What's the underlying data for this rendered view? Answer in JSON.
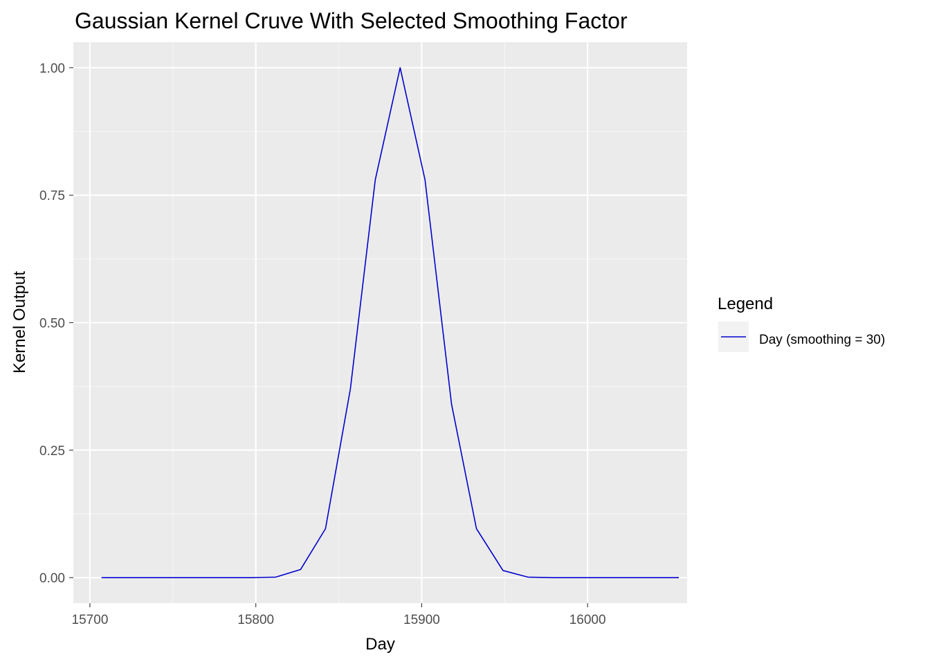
{
  "chart_data": {
    "type": "line",
    "title": "Gaussian Kernel Cruve With Selected Smoothing Factor",
    "xlabel": "Day",
    "ylabel": "Kernel Output",
    "xlim": [
      15690,
      16060
    ],
    "ylim": [
      -0.05,
      1.05
    ],
    "x_ticks": [
      15700,
      15800,
      15900,
      16000
    ],
    "x_tick_labels": [
      "15700",
      "15800",
      "15900",
      "16000"
    ],
    "y_ticks": [
      0,
      0.25,
      0.5,
      0.75,
      1.0
    ],
    "y_tick_labels": [
      "0.00",
      "0.25",
      "0.50",
      "0.75",
      "1.00"
    ],
    "grid": true,
    "legend": {
      "title": "Legend",
      "placement": "right"
    },
    "series": [
      {
        "name": "Day (smoothing = 30)",
        "color": "#0000CD",
        "x": [
          15707,
          15722,
          15737,
          15752,
          15767,
          15782,
          15797,
          15812,
          15827,
          15842,
          15857,
          15872,
          15887,
          15902,
          15918,
          15933,
          15949,
          15964,
          15980,
          15995,
          16010,
          16025,
          16040,
          16055
        ],
        "y": [
          0.0,
          0.0,
          0.0,
          0.0,
          0.0,
          0.0,
          0.0,
          0.001,
          0.016,
          0.096,
          0.37,
          0.78,
          1.0,
          0.78,
          0.34,
          0.096,
          0.014,
          0.001,
          0.0,
          0.0,
          0.0,
          0.0,
          0.0,
          0.0
        ]
      }
    ]
  },
  "colors": {
    "panel_background": "#EBEBEB",
    "grid_major": "#FFFFFF",
    "grid_minor": "#F5F5F5",
    "tick_text": "#4D4D4D",
    "line": "#0000CD"
  }
}
